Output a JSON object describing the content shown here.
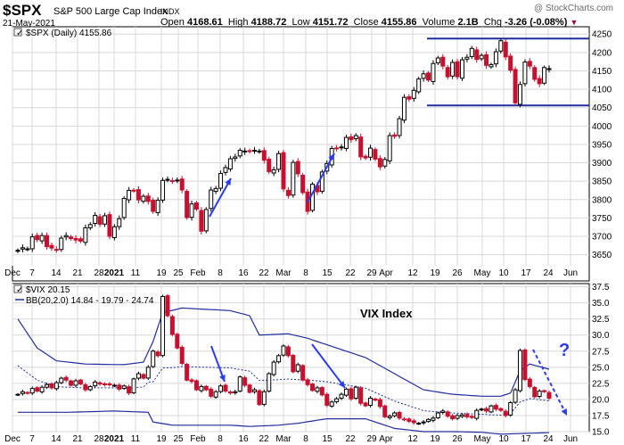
{
  "header": {
    "symbol": "$SPX",
    "name": "S&P 500 Large Cap Index",
    "exchange": "INDX",
    "copyright": "@ StockCharts.com",
    "date": "21-May-2021",
    "open_label": "Open",
    "open": "4168.61",
    "high_label": "High",
    "high": "4188.72",
    "low_label": "Low",
    "low": "4151.72",
    "close_label": "Close",
    "close": "4155.86",
    "volume_label": "Volume",
    "volume": "2.1B",
    "chg_label": "Chg",
    "chg": "-3.26 (-0.08%)"
  },
  "colors": {
    "up": "#000000",
    "down": "#c8102e",
    "band": "#1f2d9e",
    "arrow": "#2a3cf0",
    "grid": "#d8d8d8"
  },
  "chart_data": [
    {
      "type": "candlestick",
      "legend": "$SPX (Daily) 4155.86",
      "ylim": [
        3620,
        4270
      ],
      "yticks": [
        3650,
        3700,
        3750,
        3800,
        3850,
        3900,
        3950,
        4000,
        4050,
        4100,
        4150,
        4200,
        4250
      ],
      "xticks": [
        "Dec",
        "7",
        "14",
        "21",
        "28",
        "2021",
        "11",
        "19",
        "25",
        "Feb",
        "8",
        "16",
        "22",
        "Mar",
        "8",
        "15",
        "22",
        "29",
        "Apr",
        "12",
        "19",
        "26",
        "May",
        "10",
        "17",
        "24",
        "Jun"
      ],
      "closes": [
        3662,
        3669,
        3666,
        3699,
        3691,
        3702,
        3672,
        3668,
        3664,
        3695,
        3702,
        3694,
        3690,
        3687,
        3723,
        3732,
        3757,
        3733,
        3756,
        3700,
        3726,
        3748,
        3803,
        3825,
        3824,
        3799,
        3809,
        3795,
        3768,
        3798,
        3852,
        3855,
        3851,
        3853,
        3826,
        3751,
        3788,
        3774,
        3714,
        3773,
        3826,
        3830,
        3871,
        3887,
        3911,
        3916,
        3934,
        3932,
        3931,
        3934,
        3932,
        3907,
        3876,
        3881,
        3925,
        3829,
        3811,
        3901,
        3870,
        3819,
        3768,
        3842,
        3821,
        3875,
        3898,
        3939,
        3939,
        3943,
        3969,
        3963,
        3974,
        3916,
        3913,
        3940,
        3910,
        3889,
        3909,
        3974,
        3972,
        4020,
        4078,
        4073,
        4097,
        4128,
        4142,
        4125,
        4170,
        4185,
        4163,
        4134,
        4173,
        4134,
        4180,
        4187,
        4211,
        4181,
        4192,
        4165,
        4167,
        4202,
        4232,
        4188,
        4152,
        4063,
        4113,
        4174,
        4163,
        4127,
        4115,
        4159,
        4156
      ],
      "support": 4056,
      "resistance": 4238
    },
    {
      "type": "candlestick",
      "title": "VIX Index",
      "legend": "$VIX 20.15",
      "bb_legend": "BB(20,2.0) 14.84 - 19.79 - 24.74",
      "ylim": [
        15,
        38
      ],
      "yticks": [
        15.0,
        17.5,
        20.0,
        22.5,
        25.0,
        27.5,
        30.0,
        32.5,
        35.0,
        37.5
      ],
      "xticks": [
        "Dec",
        "7",
        "14",
        "21",
        "28",
        "2021",
        "11",
        "19",
        "25",
        "Feb",
        "8",
        "16",
        "22",
        "Mar",
        "8",
        "15",
        "22",
        "29",
        "Apr",
        "12",
        "19",
        "26",
        "May",
        "10",
        "17",
        "24",
        "Jun"
      ],
      "closes": [
        20.8,
        21.2,
        21.0,
        21.7,
        21.3,
        21.9,
        22.3,
        21.8,
        22.6,
        23.3,
        23.0,
        22.2,
        22.9,
        22.4,
        21.5,
        22.0,
        22.7,
        22.4,
        22.3,
        22.3,
        22.2,
        21.6,
        22.1,
        21.0,
        23.2,
        24.0,
        23.3,
        25.0,
        27.5,
        26.8,
        36.0,
        33.0,
        30.1,
        28.0,
        25.6,
        23.0,
        22.8,
        21.5,
        22.0,
        21.5,
        20.5,
        21.2,
        22.1,
        21.3,
        21.0,
        21.2,
        23.5,
        22.2,
        21.1,
        21.5,
        19.2,
        21.2,
        24.0,
        25.8,
        26.8,
        28.3,
        26.8,
        24.3,
        25.4,
        23.0,
        22.3,
        21.4,
        21.8,
        20.7,
        19.1,
        19.6,
        20.1,
        20.8,
        21.6,
        20.1,
        21.9,
        19.4,
        19.0,
        20.2,
        19.9,
        18.9,
        17.3,
        17.4,
        17.9,
        17.1,
        16.9,
        16.6,
        16.4,
        16.3,
        16.5,
        16.9,
        17.1,
        17.9,
        18.2,
        17.4,
        17.0,
        17.5,
        17.6,
        17.3,
        17.2,
        18.3,
        18.5,
        18.2,
        19.0,
        18.5,
        18.3,
        17.5,
        19.5,
        21.5,
        27.6,
        23.1,
        22.0,
        20.4,
        21.3,
        21.2,
        20.2
      ],
      "bb_upper_guide": [
        [
          0,
          32.5
        ],
        [
          4,
          28.0
        ],
        [
          8,
          26.0
        ],
        [
          14,
          25.5
        ],
        [
          22,
          25.4
        ],
        [
          26,
          25.8
        ],
        [
          28,
          29.0
        ],
        [
          30,
          33.5
        ],
        [
          34,
          34.2
        ],
        [
          44,
          33.8
        ],
        [
          48,
          33.0
        ],
        [
          50,
          30.0
        ],
        [
          56,
          30.2
        ],
        [
          60,
          29.5
        ],
        [
          64,
          28.5
        ],
        [
          68,
          27.5
        ],
        [
          72,
          26.5
        ],
        [
          78,
          24.0
        ],
        [
          84,
          21.5
        ],
        [
          90,
          20.8
        ],
        [
          96,
          20.5
        ],
        [
          100,
          20.5
        ],
        [
          102,
          21.0
        ],
        [
          104,
          24.5
        ],
        [
          106,
          25.5
        ],
        [
          110,
          24.7
        ]
      ],
      "bb_lower_guide": [
        [
          0,
          18.0
        ],
        [
          10,
          18.0
        ],
        [
          20,
          18.2
        ],
        [
          27,
          18.0
        ],
        [
          28,
          16.5
        ],
        [
          32,
          16.0
        ],
        [
          44,
          16.0
        ],
        [
          48,
          15.8
        ],
        [
          54,
          16.0
        ],
        [
          58,
          16.3
        ],
        [
          64,
          17.0
        ],
        [
          72,
          17.0
        ],
        [
          78,
          15.5
        ],
        [
          84,
          15.0
        ],
        [
          90,
          15.0
        ],
        [
          96,
          14.9
        ],
        [
          100,
          14.6
        ],
        [
          104,
          14.7
        ],
        [
          110,
          14.84
        ]
      ],
      "question_mark": "?"
    }
  ]
}
